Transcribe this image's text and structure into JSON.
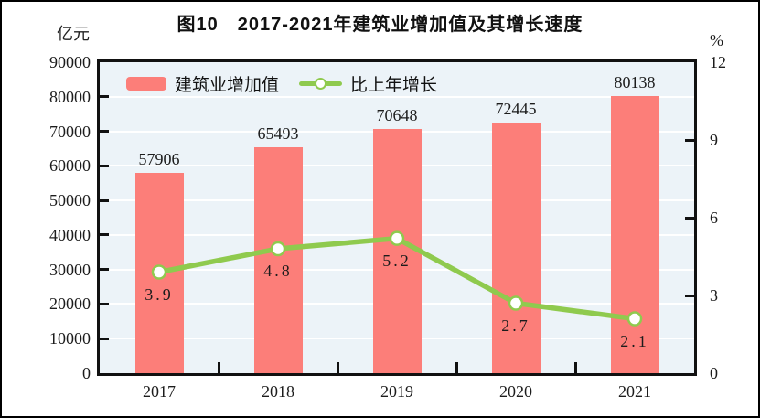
{
  "page": {
    "background": "#ffffff",
    "frame_border_color": "#000000"
  },
  "chart_data": {
    "type": "bar+line",
    "title": "图10　2017-2021年建筑业增加值及其增长速度",
    "categories": [
      "2017",
      "2018",
      "2019",
      "2020",
      "2021"
    ],
    "series": [
      {
        "name": "建筑业增加值",
        "type": "bar",
        "axis": "left",
        "color": "#fc7e79",
        "values": [
          57906,
          65493,
          70648,
          72445,
          80138
        ],
        "labels": [
          "57906",
          "65493",
          "70648",
          "72445",
          "80138"
        ]
      },
      {
        "name": "比上年增长",
        "type": "line",
        "axis": "right",
        "color": "#8fca4e",
        "marker": "circle-white-fill",
        "values": [
          3.9,
          4.8,
          5.2,
          2.7,
          2.1
        ],
        "labels": [
          "3.9",
          "4.8",
          "5.2",
          "2.7",
          "2.1"
        ]
      }
    ],
    "left_axis": {
      "unit": "亿元",
      "min": 0,
      "max": 90000,
      "step": 10000,
      "tick_labels": [
        "0",
        "10000",
        "20000",
        "30000",
        "40000",
        "50000",
        "60000",
        "70000",
        "80000",
        "90000"
      ]
    },
    "right_axis": {
      "unit": "%",
      "min": 0,
      "max": 12,
      "step": 3,
      "tick_labels": [
        "0",
        "3",
        "6",
        "9",
        "12"
      ]
    },
    "legend": {
      "position": "top-left-inside",
      "entries": [
        "建筑业增加值",
        "比上年增长"
      ]
    },
    "grid": {
      "horizontal": true,
      "color": "#ffffff"
    },
    "plot_background": "#ecf3f8",
    "axis_color": "#111111"
  }
}
